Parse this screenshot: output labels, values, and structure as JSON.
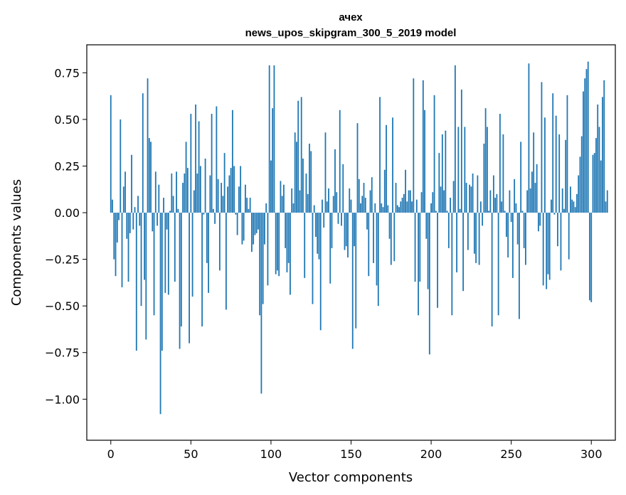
{
  "chart_data": {
    "type": "bar",
    "title": "ачех",
    "subtitle": "news_upos_skipgram_300_5_2019 model",
    "xlabel": "Vector components",
    "ylabel": "Components values",
    "xlim": [
      -15,
      315
    ],
    "ylim": [
      -1.22,
      0.9
    ],
    "xticks": [
      0,
      50,
      100,
      150,
      200,
      250,
      300
    ],
    "xtick_labels": [
      "0",
      "50",
      "100",
      "150",
      "200",
      "250",
      "300"
    ],
    "yticks": [
      -1.0,
      -0.75,
      -0.5,
      -0.25,
      0.0,
      0.25,
      0.5,
      0.75
    ],
    "ytick_labels": [
      "−1.00",
      "−0.75",
      "−0.50",
      "−0.25",
      "0.00",
      "0.25",
      "0.50",
      "0.75"
    ],
    "grid": false,
    "bar_color": "#1f77b4",
    "values": [
      0.63,
      0.07,
      -0.25,
      -0.34,
      -0.16,
      -0.04,
      0.5,
      -0.4,
      0.14,
      0.22,
      -0.14,
      -0.37,
      -0.11,
      0.31,
      -0.09,
      0.03,
      -0.74,
      0.09,
      -0.07,
      -0.5,
      0.64,
      -0.36,
      -0.68,
      0.72,
      0.4,
      0.38,
      -0.1,
      -0.55,
      0.22,
      -0.07,
      0.15,
      -1.08,
      -0.74,
      0.08,
      -0.43,
      -0.09,
      -0.44,
      0.01,
      0.21,
      0.09,
      -0.37,
      0.22,
      0.02,
      -0.73,
      -0.61,
      0.16,
      0.21,
      0.38,
      0.24,
      -0.7,
      0.53,
      -0.45,
      0.12,
      0.58,
      0.21,
      0.49,
      0.25,
      -0.61,
      -0.01,
      0.29,
      -0.27,
      -0.43,
      0.2,
      0.53,
      0.02,
      -0.06,
      0.57,
      0.18,
      -0.31,
      0.16,
      0.09,
      0.32,
      -0.52,
      0.14,
      0.2,
      0.24,
      0.55,
      0.25,
      -0.01,
      -0.12,
      0.14,
      0.25,
      -0.17,
      -0.15,
      0.15,
      0.08,
      0.02,
      0.08,
      -0.21,
      -0.17,
      -0.12,
      -0.11,
      -0.09,
      -0.55,
      -0.97,
      -0.49,
      -0.17,
      0.05,
      -0.39,
      0.79,
      0.28,
      0.56,
      0.79,
      -0.33,
      -0.31,
      -0.34,
      0.17,
      0.09,
      0.15,
      -0.19,
      -0.32,
      -0.27,
      -0.44,
      0.13,
      0.05,
      0.43,
      0.38,
      0.6,
      0.12,
      0.62,
      0.29,
      -0.35,
      0.21,
      0.1,
      0.37,
      0.33,
      -0.49,
      0.04,
      -0.13,
      -0.22,
      -0.25,
      -0.63,
      0.07,
      -0.08,
      0.43,
      0.06,
      0.13,
      -0.38,
      -0.19,
      0.09,
      0.34,
      0.11,
      -0.06,
      0.55,
      -0.07,
      0.26,
      -0.2,
      -0.18,
      -0.24,
      0.13,
      0.07,
      -0.73,
      -0.18,
      -0.62,
      0.48,
      0.18,
      0.05,
      0.09,
      0.16,
      0.08,
      -0.09,
      -0.34,
      0.12,
      0.19,
      -0.27,
      0.05,
      -0.39,
      -0.5,
      0.62,
      0.05,
      0.03,
      0.23,
      0.47,
      0.04,
      -0.14,
      -0.28,
      0.51,
      -0.26,
      0.16,
      0.04,
      0.03,
      0.06,
      0.08,
      0.1,
      0.23,
      0.06,
      0.12,
      0.12,
      0.06,
      0.72,
      -0.37,
      0.07,
      -0.55,
      -0.37,
      0.11,
      0.71,
      0.55,
      -0.14,
      -0.41,
      -0.76,
      0.05,
      0.11,
      0.63,
      0.01,
      -0.51,
      0.32,
      0.14,
      0.42,
      0.12,
      0.44,
      0.01,
      -0.19,
      0.08,
      -0.55,
      0.17,
      0.79,
      -0.32,
      0.46,
      0.02,
      0.66,
      -0.42,
      0.46,
      0.16,
      -0.2,
      0.15,
      0.14,
      0.21,
      -0.22,
      -0.27,
      0.2,
      -0.28,
      0.06,
      -0.07,
      0.37,
      0.56,
      0.46,
      0.01,
      0.12,
      -0.61,
      0.2,
      0.08,
      0.1,
      -0.55,
      0.53,
      0.06,
      0.42,
      0.01,
      -0.13,
      -0.24,
      0.12,
      -0.05,
      -0.35,
      0.18,
      0.05,
      -0.17,
      -0.57,
      0.38,
      0.01,
      -0.19,
      -0.28,
      0.12,
      0.8,
      0.13,
      0.22,
      0.43,
      0.16,
      0.26,
      -0.1,
      -0.07,
      0.7,
      -0.39,
      0.51,
      -0.41,
      -0.33,
      -0.36,
      0.07,
      0.64,
      -0.01,
      0.52,
      -0.18,
      0.42,
      -0.31,
      0.13,
      0.02,
      0.39,
      0.63,
      -0.25,
      0.14,
      0.07,
      0.06,
      0.03,
      0.1,
      0.2,
      0.3,
      0.41,
      0.65,
      0.72,
      0.77,
      0.81,
      -0.47,
      -0.48,
      0.31,
      0.32,
      0.4,
      0.58,
      0.46,
      0.28,
      0.62,
      0.71,
      0.06,
      0.12
    ]
  }
}
